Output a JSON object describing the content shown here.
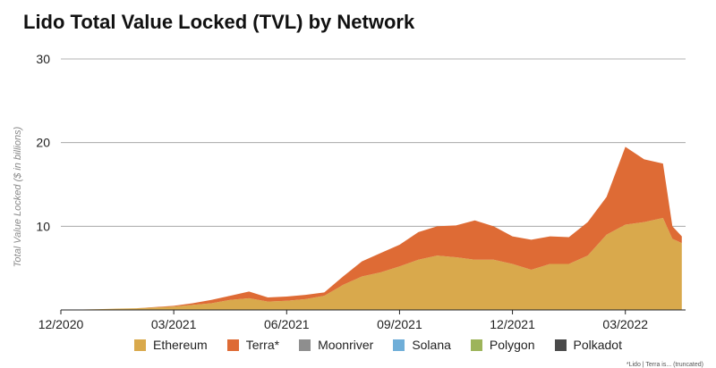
{
  "chart_data": {
    "type": "area",
    "stacked": true,
    "title": "Lido Total Value Locked (TVL) by Network",
    "xlabel": "",
    "ylabel": "Total Value Locked ($ in billions)",
    "ylim": [
      0,
      30
    ],
    "yticks": [
      10,
      20,
      30
    ],
    "xticks": [
      "12/2020",
      "03/2021",
      "06/2021",
      "09/2021",
      "12/2021",
      "03/2022"
    ],
    "grid": true,
    "legend_position": "bottom",
    "x_months": [
      0,
      1,
      2,
      3,
      3.5,
      4,
      4.5,
      5,
      5.5,
      6,
      6.5,
      7,
      7.5,
      8,
      8.5,
      9,
      9.5,
      10,
      10.5,
      11,
      11.5,
      12,
      12.5,
      13,
      13.5,
      14,
      14.5,
      15,
      15.5,
      16,
      16.25,
      16.5
    ],
    "series": [
      {
        "name": "Ethereum",
        "color": "#D9A94C",
        "values": [
          0,
          0.1,
          0.2,
          0.4,
          0.6,
          0.8,
          1.2,
          1.4,
          1.0,
          1.1,
          1.3,
          1.7,
          3.0,
          4.0,
          4.5,
          5.2,
          6.0,
          6.5,
          6.3,
          6.0,
          6.0,
          5.5,
          4.8,
          5.5,
          5.5,
          6.5,
          9.0,
          10.2,
          10.5,
          11.0,
          8.5,
          8.0
        ]
      },
      {
        "name": "Terra*",
        "color": "#DE6B35",
        "values": [
          0,
          0,
          0,
          0.1,
          0.2,
          0.4,
          0.5,
          0.8,
          0.5,
          0.5,
          0.5,
          0.4,
          1.0,
          1.8,
          2.3,
          2.6,
          3.3,
          3.5,
          3.8,
          4.7,
          4.0,
          3.3,
          3.6,
          3.3,
          3.2,
          4.0,
          4.5,
          9.3,
          7.5,
          6.5,
          1.5,
          0.8
        ]
      },
      {
        "name": "Moonriver",
        "color": "#8E8E8E",
        "values": []
      },
      {
        "name": "Solana",
        "color": "#6FAED8",
        "values": []
      },
      {
        "name": "Polygon",
        "color": "#9DB45A",
        "values": []
      },
      {
        "name": "Polkadot",
        "color": "#4A4A4A",
        "values": []
      }
    ]
  },
  "footnote": "*Lido | Terra is... (truncated)"
}
